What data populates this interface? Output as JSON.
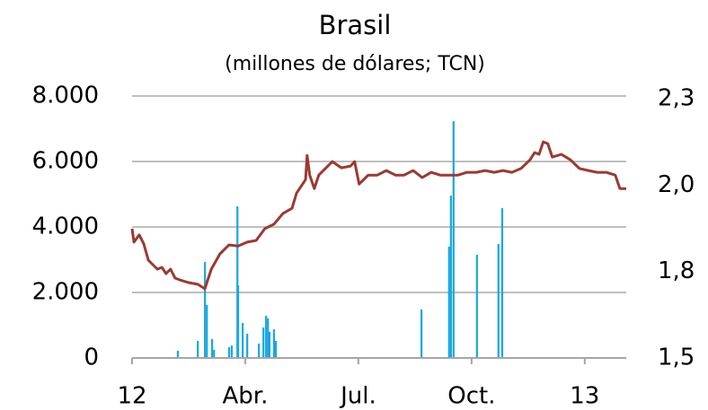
{
  "chart_data": {
    "type": "combo",
    "title": "Brasil",
    "subtitle": "(millones de dólares; TCN)",
    "xlim": [
      0,
      13.1
    ],
    "xticks": [
      {
        "value": 0,
        "label": "12"
      },
      {
        "value": 3,
        "label": "Abr."
      },
      {
        "value": 6,
        "label": "Jul."
      },
      {
        "value": 9,
        "label": "Oct."
      },
      {
        "value": 12,
        "label": "13"
      }
    ],
    "ylim": [
      0,
      8000
    ],
    "yticks": [
      {
        "value": 0,
        "label": "0"
      },
      {
        "value": 2000,
        "label": "2.000"
      },
      {
        "value": 4000,
        "label": "4.000"
      },
      {
        "value": 6000,
        "label": "6.000"
      },
      {
        "value": 8000,
        "label": "8.000"
      }
    ],
    "y2lim": [
      1.55,
      2.3
    ],
    "y2ticks": [
      {
        "value": 1.55,
        "label": "1,5"
      },
      {
        "value": 1.8,
        "label": "1,8"
      },
      {
        "value": 2.05,
        "label": "2,0"
      },
      {
        "value": 2.3,
        "label": "2,3"
      }
    ],
    "grid": true,
    "series": [
      {
        "type": "bar",
        "color": "#1aa7e0",
        "x": [
          1.21,
          1.74,
          1.93,
          1.98,
          2.12,
          2.17,
          2.57,
          2.64,
          2.79,
          2.81,
          2.93,
          3.05,
          3.36,
          3.48,
          3.55,
          3.6,
          3.64,
          3.76,
          3.81,
          7.67,
          8.4,
          8.45,
          8.52,
          9.14,
          9.71,
          9.81
        ],
        "values": [
          220,
          520,
          2930,
          1620,
          580,
          250,
          330,
          380,
          4630,
          2220,
          1070,
          740,
          440,
          930,
          1290,
          1210,
          800,
          880,
          520,
          1480,
          3400,
          4960,
          7230,
          3150,
          3480,
          4580
        ]
      },
      {
        "type": "line",
        "axis": "y2",
        "color": "#9b3a32",
        "x": [
          0,
          0.05,
          0.19,
          0.31,
          0.43,
          0.55,
          0.67,
          0.79,
          0.9,
          1.02,
          1.14,
          1.26,
          1.5,
          1.74,
          1.86,
          1.93,
          2.1,
          2.33,
          2.57,
          2.81,
          3.05,
          3.29,
          3.52,
          3.76,
          4.0,
          4.24,
          4.36,
          4.6,
          4.64,
          4.71,
          4.83,
          4.95,
          5.07,
          5.31,
          5.55,
          5.79,
          5.9,
          6.02,
          6.26,
          6.5,
          6.74,
          6.98,
          7.21,
          7.45,
          7.69,
          7.93,
          8.17,
          8.4,
          8.64,
          8.88,
          9.12,
          9.36,
          9.6,
          9.83,
          10.07,
          10.31,
          10.55,
          10.67,
          10.79,
          10.9,
          11.02,
          11.14,
          11.38,
          11.62,
          11.86,
          12.1,
          12.33,
          12.57,
          12.81,
          12.93,
          13.1
        ],
        "values": [
          1.924,
          1.885,
          1.906,
          1.88,
          1.833,
          1.82,
          1.807,
          1.812,
          1.794,
          1.807,
          1.781,
          1.776,
          1.768,
          1.763,
          1.755,
          1.75,
          1.807,
          1.851,
          1.877,
          1.874,
          1.885,
          1.89,
          1.924,
          1.937,
          1.968,
          1.983,
          2.027,
          2.066,
          2.136,
          2.079,
          2.04,
          2.079,
          2.092,
          2.118,
          2.1,
          2.105,
          2.118,
          2.053,
          2.079,
          2.079,
          2.092,
          2.079,
          2.079,
          2.092,
          2.072,
          2.087,
          2.079,
          2.079,
          2.079,
          2.087,
          2.087,
          2.092,
          2.087,
          2.092,
          2.087,
          2.098,
          2.123,
          2.144,
          2.139,
          2.175,
          2.17,
          2.131,
          2.139,
          2.123,
          2.098,
          2.092,
          2.087,
          2.087,
          2.079,
          2.04,
          2.04
        ]
      }
    ]
  }
}
